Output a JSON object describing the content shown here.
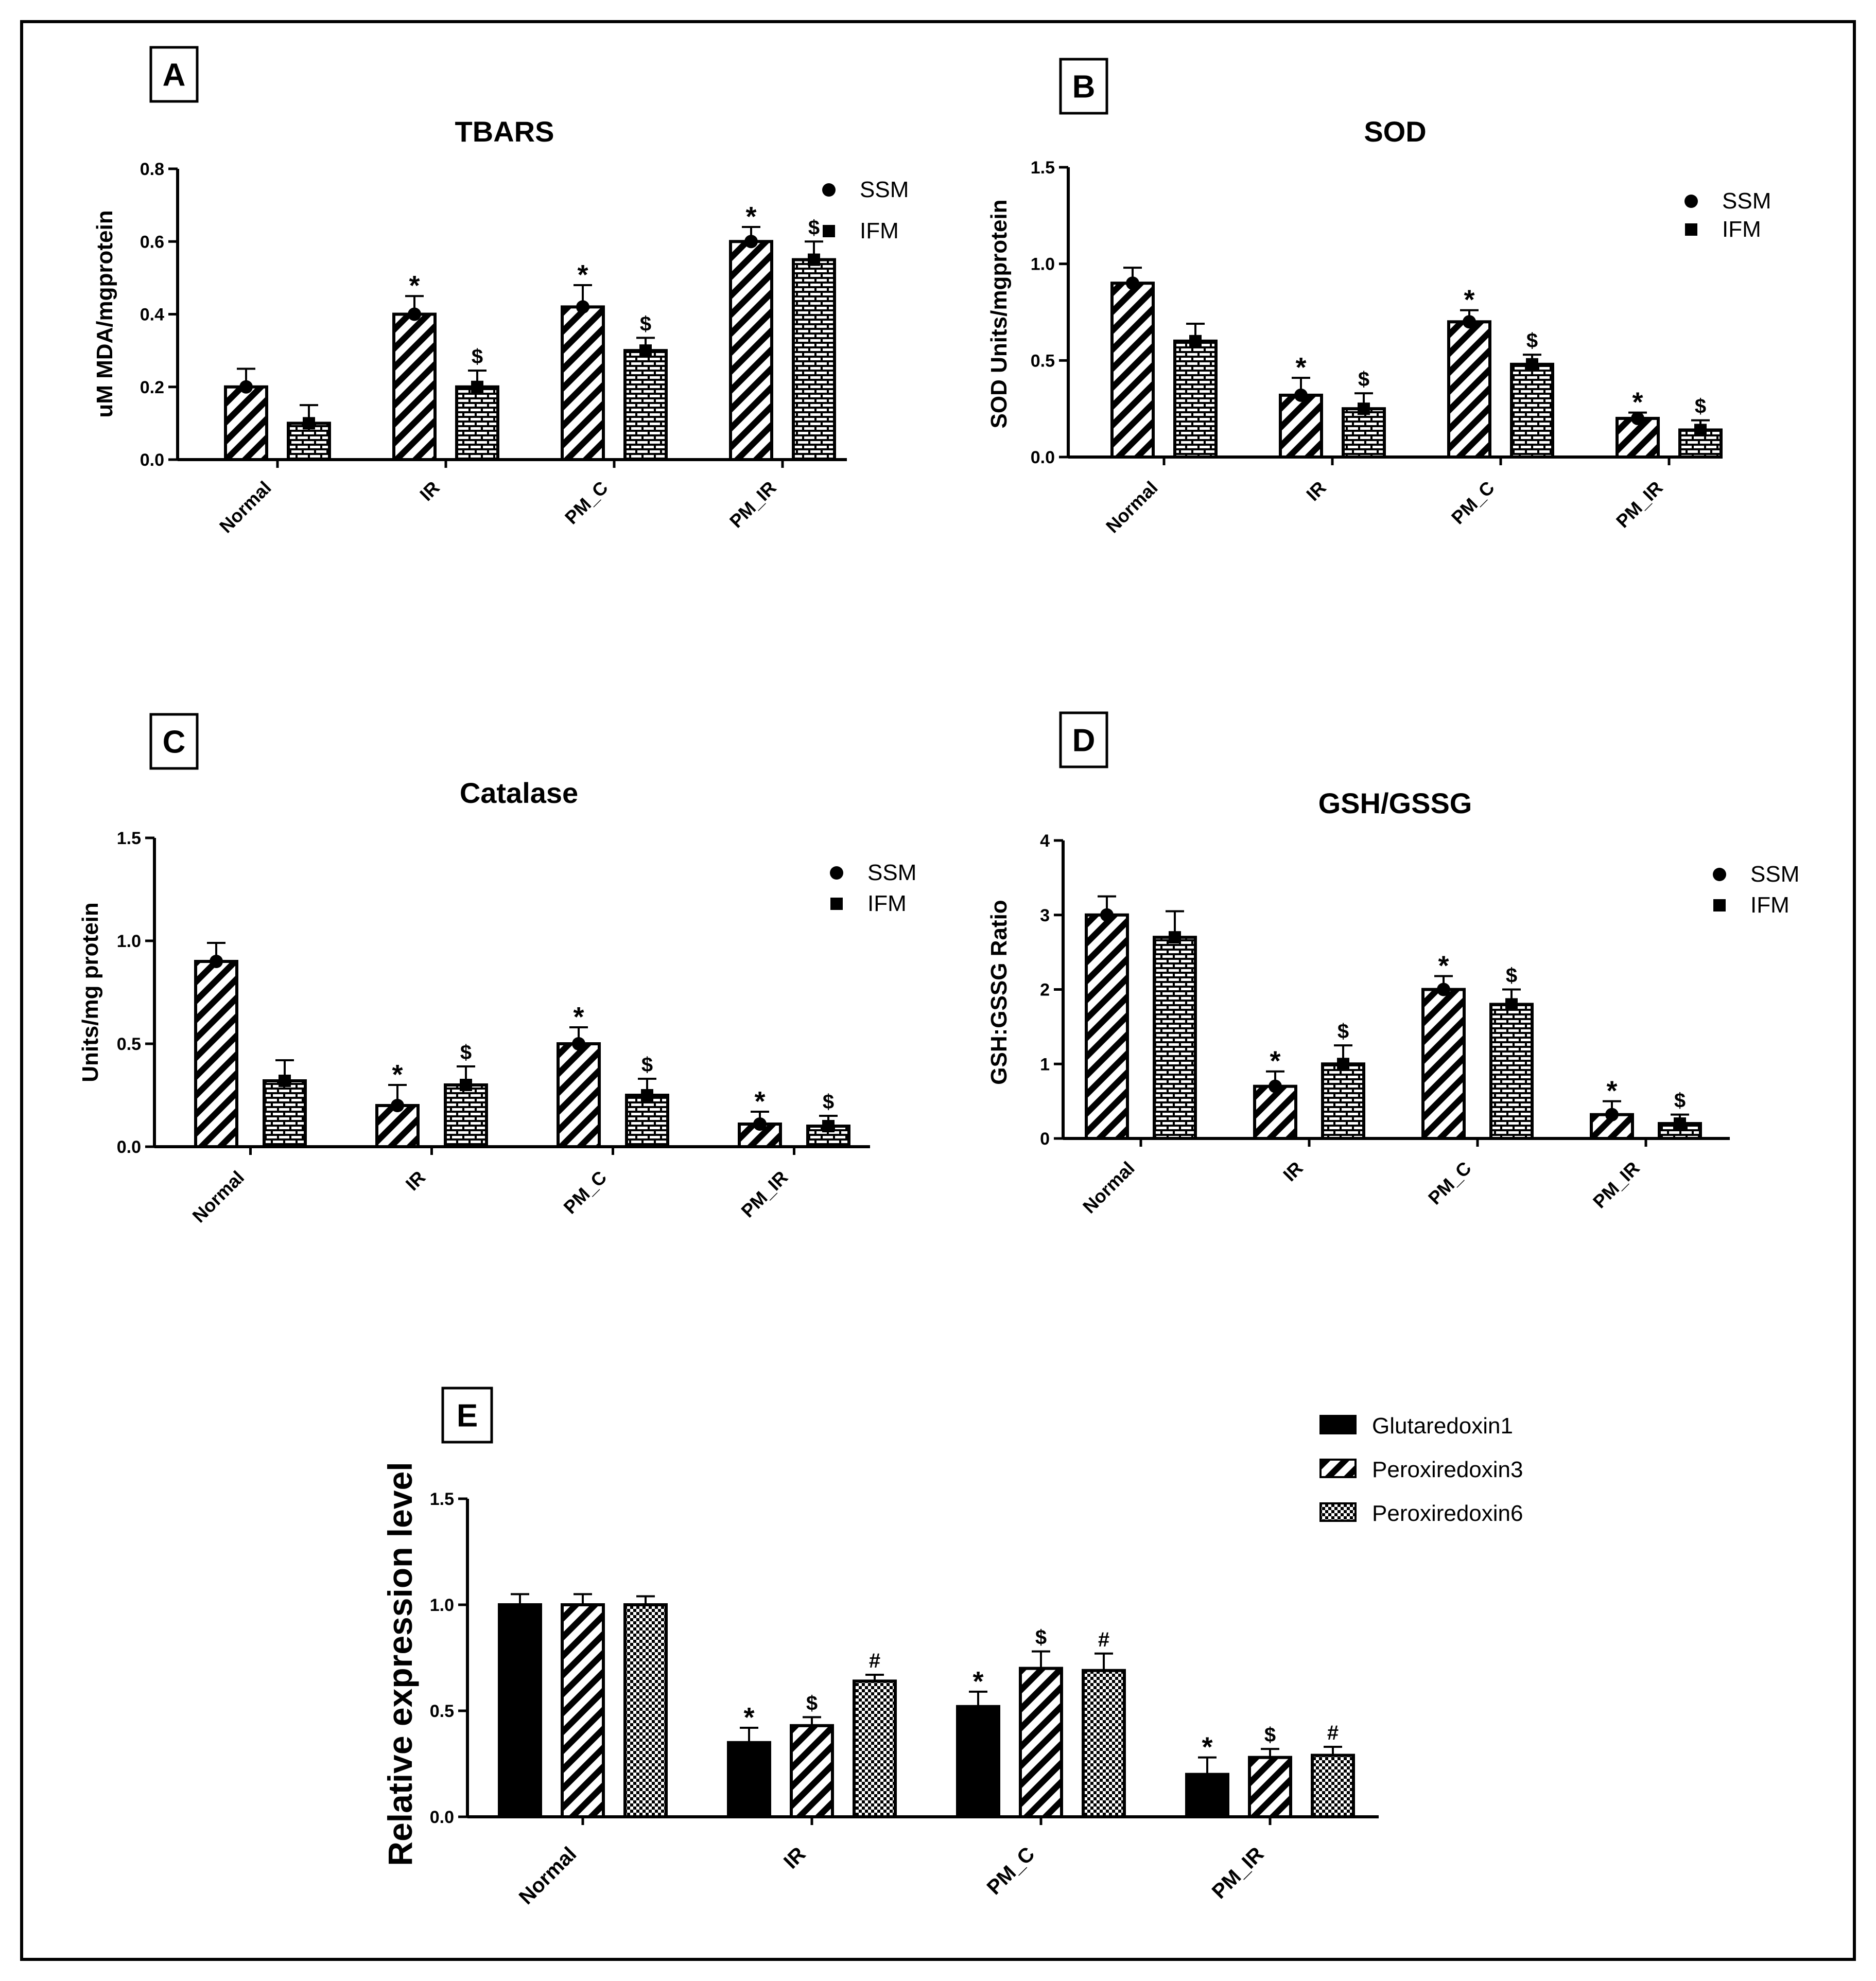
{
  "panels": [
    {
      "id": "A",
      "chart_data": {
        "type": "bar",
        "title": "TBARS",
        "ylabel": "uM MDA/mgprotein",
        "xlabel": "",
        "ylim": [
          0,
          0.8
        ],
        "yticks": [
          "0.0",
          "0.2",
          "0.4",
          "0.6",
          "0.8"
        ],
        "categories": [
          "Normal",
          "IR",
          "PM_C",
          "PM_IR"
        ],
        "series": [
          {
            "name": "SSM",
            "pattern": "diag",
            "marker": "circle",
            "values": [
              0.2,
              0.4,
              0.42,
              0.6
            ],
            "errors": [
              0.05,
              0.05,
              0.06,
              0.04
            ],
            "sig": [
              "",
              "*",
              "*",
              "*"
            ]
          },
          {
            "name": "IFM",
            "pattern": "brick",
            "marker": "square",
            "values": [
              0.1,
              0.2,
              0.3,
              0.55
            ],
            "errors": [
              0.05,
              0.045,
              0.035,
              0.05
            ],
            "sig": [
              "",
              "$",
              "$",
              "$"
            ]
          }
        ],
        "legend": "top-right"
      }
    },
    {
      "id": "B",
      "chart_data": {
        "type": "bar",
        "title": "SOD",
        "ylabel": "SOD Units/mgprotein",
        "xlabel": "",
        "ylim": [
          0,
          1.5
        ],
        "yticks": [
          "0.0",
          "0.5",
          "1.0",
          "1.5"
        ],
        "categories": [
          "Normal",
          "IR",
          "PM_C",
          "PM_IR"
        ],
        "series": [
          {
            "name": "SSM",
            "pattern": "diag",
            "marker": "circle",
            "values": [
              0.9,
              0.32,
              0.7,
              0.2
            ],
            "errors": [
              0.08,
              0.09,
              0.06,
              0.03
            ],
            "sig": [
              "",
              "*",
              "*",
              "*"
            ]
          },
          {
            "name": "IFM",
            "pattern": "brick",
            "marker": "square",
            "values": [
              0.6,
              0.25,
              0.48,
              0.14
            ],
            "errors": [
              0.09,
              0.08,
              0.05,
              0.05
            ],
            "sig": [
              "",
              "$",
              "$",
              "$"
            ]
          }
        ],
        "legend": "top-right"
      }
    },
    {
      "id": "C",
      "chart_data": {
        "type": "bar",
        "title": "Catalase",
        "ylabel": "Units/mg protein",
        "xlabel": "",
        "ylim": [
          0,
          1.5
        ],
        "yticks": [
          "0.0",
          "0.5",
          "1.0",
          "1.5"
        ],
        "categories": [
          "Normal",
          "IR",
          "PM_C",
          "PM_IR"
        ],
        "series": [
          {
            "name": "SSM",
            "pattern": "diag",
            "marker": "circle",
            "values": [
              0.9,
              0.2,
              0.5,
              0.11
            ],
            "errors": [
              0.09,
              0.1,
              0.08,
              0.06
            ],
            "sig": [
              "",
              "*",
              "*",
              "*"
            ]
          },
          {
            "name": "IFM",
            "pattern": "brick",
            "marker": "square",
            "values": [
              0.32,
              0.3,
              0.25,
              0.1
            ],
            "errors": [
              0.1,
              0.09,
              0.08,
              0.05
            ],
            "sig": [
              "",
              "$",
              "$",
              "$"
            ]
          }
        ],
        "legend": "top-right"
      }
    },
    {
      "id": "D",
      "chart_data": {
        "type": "bar",
        "title": "GSH/GSSG",
        "ylabel": "GSH:GSSG Ratio",
        "xlabel": "",
        "ylim": [
          0,
          4
        ],
        "yticks": [
          "0",
          "1",
          "2",
          "3",
          "4"
        ],
        "categories": [
          "Normal",
          "IR",
          "PM_C",
          "PM_IR"
        ],
        "series": [
          {
            "name": "SSM",
            "pattern": "diag",
            "marker": "circle",
            "values": [
              3.0,
              0.7,
              2.0,
              0.32
            ],
            "errors": [
              0.25,
              0.2,
              0.18,
              0.18
            ],
            "sig": [
              "",
              "*",
              "*",
              "*"
            ]
          },
          {
            "name": "IFM",
            "pattern": "brick",
            "marker": "square",
            "values": [
              2.7,
              1.0,
              1.8,
              0.2
            ],
            "errors": [
              0.35,
              0.25,
              0.2,
              0.12
            ],
            "sig": [
              "",
              "$",
              "$",
              "$"
            ]
          }
        ],
        "legend": "top-right"
      }
    },
    {
      "id": "E",
      "chart_data": {
        "type": "bar",
        "title": "",
        "ylabel": "Relative expression level",
        "xlabel": "",
        "ylim": [
          0,
          1.5
        ],
        "yticks": [
          "0.0",
          "0.5",
          "1.0",
          "1.5"
        ],
        "categories": [
          "Normal",
          "IR",
          "PM_C",
          "PM_IR"
        ],
        "series": [
          {
            "name": "Glutaredoxin1",
            "pattern": "solid",
            "marker": "",
            "values": [
              1.0,
              0.35,
              0.52,
              0.2
            ],
            "errors": [
              0.05,
              0.07,
              0.07,
              0.08
            ],
            "sig": [
              "",
              "*",
              "*",
              "*"
            ]
          },
          {
            "name": "Peroxiredoxin3",
            "pattern": "diag",
            "marker": "",
            "values": [
              1.0,
              0.43,
              0.7,
              0.28
            ],
            "errors": [
              0.05,
              0.04,
              0.08,
              0.04
            ],
            "sig": [
              "",
              "$",
              "$",
              "$"
            ]
          },
          {
            "name": "Peroxiredoxin6",
            "pattern": "check",
            "marker": "",
            "values": [
              1.0,
              0.64,
              0.69,
              0.29
            ],
            "errors": [
              0.04,
              0.03,
              0.08,
              0.04
            ],
            "sig": [
              "",
              "#",
              "#",
              "#"
            ]
          }
        ],
        "legend": "top-right"
      }
    }
  ]
}
